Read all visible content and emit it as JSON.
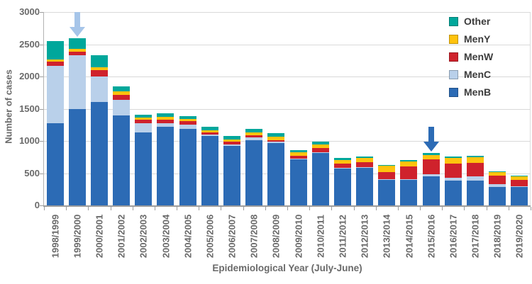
{
  "chart_data": {
    "type": "bar",
    "stacked": true,
    "title": "",
    "xlabel": "Epidemiological Year (July-June)",
    "ylabel": "Number of cases",
    "ylim": [
      0,
      3000
    ],
    "yticks": [
      0,
      500,
      1000,
      1500,
      2000,
      2500,
      3000
    ],
    "grid": true,
    "categories": [
      "1998/1999",
      "1999/2000",
      "2000/2001",
      "2001/2002",
      "2002/2003",
      "2003/2004",
      "2004/2005",
      "2005/2006",
      "2006/2007",
      "2007/2008",
      "2008/2009",
      "2009/2010",
      "2010/2011",
      "2011/2012",
      "2012/2013",
      "2013/2014",
      "2014/2015",
      "2015/2016",
      "2016/2017",
      "2017/2018",
      "2018/2019",
      "2019/2020"
    ],
    "series": [
      {
        "name": "MenB",
        "color": "#2c6bb5",
        "values": [
          1275,
          1490,
          1600,
          1400,
          1130,
          1220,
          1190,
          1080,
          920,
          1010,
          970,
          715,
          815,
          570,
          580,
          400,
          400,
          450,
          385,
          385,
          285,
          285
        ]
      },
      {
        "name": "MenC",
        "color": "#b9d0ea",
        "values": [
          895,
          840,
          400,
          235,
          145,
          60,
          60,
          20,
          30,
          45,
          15,
          15,
          10,
          15,
          15,
          10,
          10,
          30,
          45,
          70,
          50,
          10
        ]
      },
      {
        "name": "MenW",
        "color": "#cf222c",
        "values": [
          65,
          60,
          95,
          85,
          50,
          55,
          55,
          30,
          40,
          35,
          30,
          35,
          60,
          65,
          80,
          105,
          190,
          240,
          220,
          210,
          130,
          100
        ]
      },
      {
        "name": "MenY",
        "color": "#ffc30e",
        "values": [
          30,
          35,
          50,
          45,
          35,
          40,
          40,
          30,
          35,
          40,
          50,
          55,
          55,
          50,
          60,
          100,
          85,
          65,
          90,
          85,
          50,
          55
        ]
      },
      {
        "name": "Other",
        "color": "#00a79b",
        "values": [
          285,
          165,
          180,
          80,
          45,
          55,
          40,
          55,
          50,
          55,
          55,
          35,
          45,
          35,
          20,
          15,
          20,
          25,
          20,
          15,
          15,
          15
        ]
      }
    ],
    "legend": {
      "position": "top-right",
      "order": [
        "Other",
        "MenY",
        "MenW",
        "MenC",
        "MenB"
      ]
    },
    "annotations": [
      {
        "type": "arrow-down",
        "category": "1999/2000",
        "color": "#a6c5e9"
      },
      {
        "type": "arrow-down",
        "category": "2015/2016",
        "color": "#2c6bb5"
      }
    ]
  }
}
